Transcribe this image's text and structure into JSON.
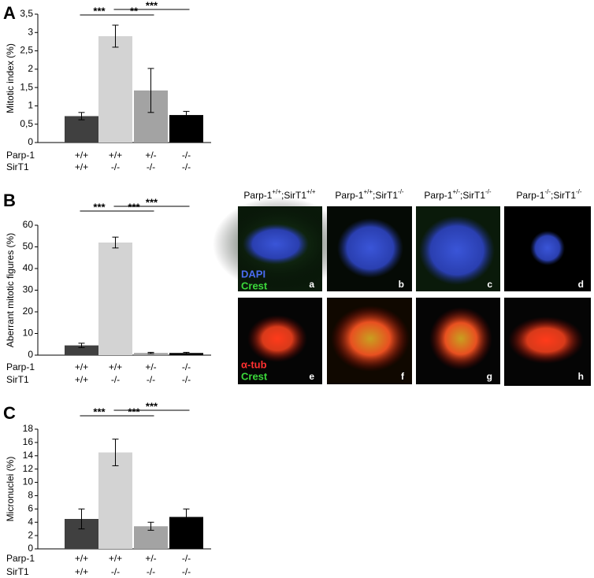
{
  "panel_labels": [
    "A",
    "B",
    "C"
  ],
  "chart_data": [
    {
      "type": "bar",
      "ylabel": "Mitotic index (%)",
      "ylim": [
        0,
        3.5
      ],
      "yticks": [
        0,
        {
          "value": 0.5,
          "label": "0,5"
        },
        1,
        {
          "value": 1.5,
          "label": "1,5"
        },
        2,
        {
          "value": 2.5,
          "label": "2,5"
        },
        3,
        {
          "value": 3.5,
          "label": "3,5"
        }
      ],
      "category_rows": [
        {
          "name": "Parp-1",
          "labels": [
            "+/+",
            "+/+",
            "+/-",
            "-/-"
          ]
        },
        {
          "name": "SirT1",
          "labels": [
            "+/+",
            "-/-",
            "-/-",
            "-/-"
          ]
        }
      ],
      "values": [
        0.72,
        2.9,
        1.42,
        0.75
      ],
      "errors": [
        0.1,
        0.3,
        0.6,
        0.1
      ],
      "colors": [
        "#404040",
        "#d3d3d3",
        "#a3a3a3",
        "#000000"
      ],
      "significance": [
        "***",
        "**",
        "***"
      ]
    },
    {
      "type": "bar",
      "ylabel": "Aberrant mitotic figures (%)",
      "ylim": [
        0,
        60
      ],
      "yticks": [
        0,
        10,
        20,
        30,
        40,
        50,
        60
      ],
      "category_rows": [
        {
          "name": "Parp-1",
          "labels": [
            "+/+",
            "+/+",
            "+/-",
            "-/-"
          ]
        },
        {
          "name": "SirT1",
          "labels": [
            "+/+",
            "-/-",
            "-/-",
            "-/-"
          ]
        }
      ],
      "values": [
        4.5,
        52,
        1,
        1
      ],
      "errors": [
        1,
        2.5,
        0.3,
        0.3
      ],
      "colors": [
        "#404040",
        "#d3d3d3",
        "#a3a3a3",
        "#000000"
      ],
      "significance": [
        "***",
        "***",
        "***"
      ]
    },
    {
      "type": "bar",
      "ylabel": "Micronuclei (%)",
      "ylim": [
        0,
        18
      ],
      "yticks": [
        0,
        2,
        4,
        6,
        8,
        10,
        12,
        14,
        16,
        18
      ],
      "category_rows": [
        {
          "name": "Parp-1",
          "labels": [
            "+/+",
            "+/+",
            "+/-",
            "-/-"
          ]
        },
        {
          "name": "SirT1",
          "labels": [
            "+/+",
            "-/-",
            "-/-",
            "-/-"
          ]
        }
      ],
      "values": [
        4.5,
        14.5,
        3.4,
        4.8
      ],
      "errors": [
        1.5,
        2.0,
        0.6,
        1.2
      ],
      "colors": [
        "#404040",
        "#d3d3d3",
        "#a3a3a3",
        "#000000"
      ],
      "significance": [
        "***",
        "***",
        "***"
      ]
    }
  ],
  "images": {
    "column_headers": [
      {
        "gene1": "Parp-1",
        "genotype1": "+/+",
        "gene2": ";SirT1",
        "genotype2": "+/+"
      },
      {
        "gene1": "Parp-1",
        "genotype1": "+/+",
        "gene2": ";SirT1",
        "genotype2": "-/-"
      },
      {
        "gene1": "Parp-1",
        "genotype1": "+/-",
        "gene2": ";SirT1",
        "genotype2": "-/-"
      },
      {
        "gene1": "Parp-1",
        "genotype1": "-/-",
        "gene2": ";SirT1",
        "genotype2": "-/-"
      }
    ],
    "panel_letters": [
      "a",
      "b",
      "c",
      "d",
      "e",
      "f",
      "g",
      "h"
    ],
    "row1_stains": [
      "DAPI",
      "Crest"
    ],
    "row2_stains": [
      "α-tub",
      "Crest"
    ]
  }
}
